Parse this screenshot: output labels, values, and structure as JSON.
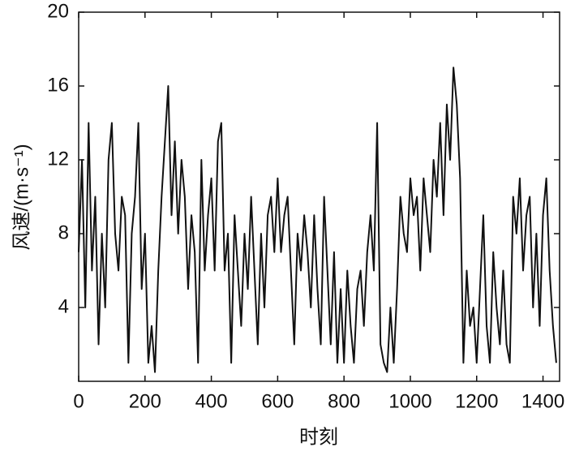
{
  "chart_data": {
    "type": "line",
    "xlabel": "时刻",
    "ylabel": "风速/(m·s⁻¹)",
    "xlim": [
      0,
      1450
    ],
    "ylim": [
      0,
      20
    ],
    "xticks": [
      0,
      200,
      400,
      600,
      800,
      1000,
      1200,
      1400
    ],
    "yticks": [
      4,
      8,
      12,
      16,
      20
    ],
    "color": "#111111",
    "x": [
      0,
      10,
      20,
      30,
      40,
      50,
      60,
      70,
      80,
      90,
      100,
      110,
      120,
      130,
      140,
      150,
      160,
      170,
      180,
      190,
      200,
      210,
      220,
      230,
      240,
      250,
      260,
      270,
      280,
      290,
      300,
      310,
      320,
      330,
      340,
      350,
      360,
      370,
      380,
      390,
      400,
      410,
      420,
      430,
      440,
      450,
      460,
      470,
      480,
      490,
      500,
      510,
      520,
      530,
      540,
      550,
      560,
      570,
      580,
      590,
      600,
      610,
      620,
      630,
      640,
      650,
      660,
      670,
      680,
      690,
      700,
      710,
      720,
      730,
      740,
      750,
      760,
      770,
      780,
      790,
      800,
      810,
      820,
      830,
      840,
      850,
      860,
      870,
      880,
      890,
      900,
      910,
      920,
      930,
      940,
      950,
      960,
      970,
      980,
      990,
      1000,
      1010,
      1020,
      1030,
      1040,
      1050,
      1060,
      1070,
      1080,
      1090,
      1100,
      1110,
      1120,
      1130,
      1140,
      1150,
      1160,
      1170,
      1180,
      1190,
      1200,
      1210,
      1220,
      1230,
      1240,
      1250,
      1260,
      1270,
      1280,
      1290,
      1300,
      1310,
      1320,
      1330,
      1340,
      1350,
      1360,
      1370,
      1380,
      1390,
      1400,
      1410,
      1420,
      1430,
      1440
    ],
    "values": [
      7,
      12,
      4,
      14,
      6,
      10,
      2,
      8,
      4,
      12,
      14,
      8,
      6,
      10,
      9,
      1,
      8,
      10,
      14,
      5,
      8,
      1,
      3,
      0.5,
      6,
      10,
      13,
      16,
      9,
      13,
      8,
      12,
      10,
      5,
      9,
      7,
      1,
      12,
      6,
      9,
      11,
      6,
      13,
      14,
      6,
      8,
      1,
      9,
      6,
      3,
      8,
      5,
      10,
      6,
      2,
      8,
      4,
      9,
      10,
      7,
      11,
      7,
      9,
      10,
      6,
      2,
      8,
      6,
      9,
      7,
      4,
      9,
      5,
      2,
      10,
      6,
      2,
      7,
      1,
      5,
      1,
      6,
      3,
      1,
      5,
      6,
      3,
      7,
      9,
      6,
      14,
      2,
      1,
      0.5,
      4,
      1,
      5,
      10,
      8,
      7,
      11,
      9,
      10,
      6,
      11,
      9,
      7,
      12,
      10,
      14,
      9,
      15,
      12,
      17,
      15,
      11,
      1,
      6,
      3,
      4,
      1,
      5,
      9,
      3,
      1,
      7,
      4,
      2,
      6,
      2,
      1,
      10,
      8,
      11,
      6,
      9,
      10,
      4,
      8,
      3,
      9,
      11,
      6,
      3,
      1
    ]
  }
}
